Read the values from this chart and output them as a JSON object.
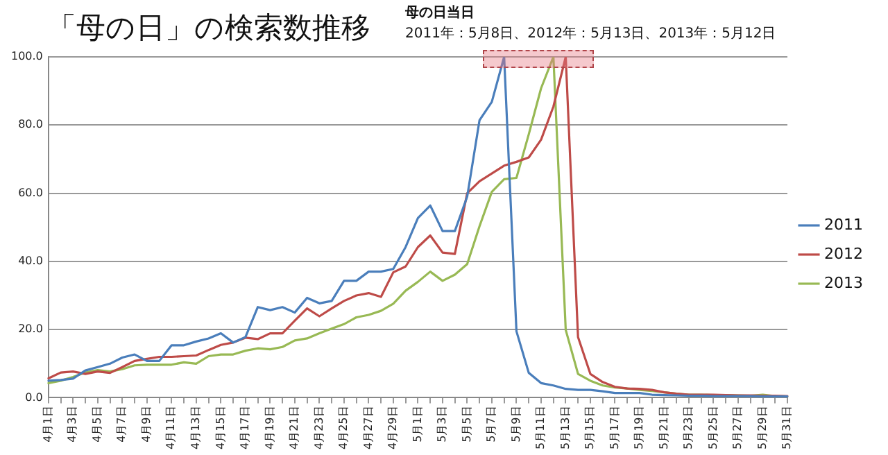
{
  "chart_data": {
    "type": "line",
    "title": "「母の日」の検索数推移",
    "annotations": [
      "母の日当日",
      "2011年：5月8日、2012年：5月13日、2013年：5月12日"
    ],
    "categories": [
      "4月1日",
      null,
      "4月3日",
      null,
      "4月5日",
      null,
      "4月7日",
      null,
      "4月9日",
      null,
      "4月11日",
      null,
      "4月13日",
      null,
      "4月15日",
      null,
      "4月17日",
      null,
      "4月19日",
      null,
      "4月21日",
      null,
      "4月23日",
      null,
      "4月25日",
      null,
      "4月27日",
      null,
      "4月29日",
      null,
      "5月1日",
      null,
      "5月3日",
      null,
      "5月5日",
      null,
      "5月7日",
      null,
      "5月9日",
      null,
      "5月11日",
      null,
      "5月13日",
      null,
      "5月15日",
      null,
      "5月17日",
      null,
      "5月19日",
      null,
      "5月21日",
      null,
      "5月23日",
      null,
      "5月25日",
      null,
      "5月27日",
      null,
      "5月29日",
      null,
      "5月31日"
    ],
    "series": [
      {
        "name": "2011",
        "color": "#4a7ebb",
        "values": [
          5.0,
          5.2,
          5.6,
          8.0,
          9.0,
          10.0,
          11.8,
          12.7,
          10.8,
          10.8,
          15.4,
          15.4,
          16.5,
          17.4,
          18.9,
          16.2,
          17.8,
          26.6,
          25.7,
          26.6,
          25.0,
          29.3,
          27.7,
          28.4,
          34.3,
          34.3,
          37.0,
          37.0,
          37.8,
          44.2,
          52.7,
          56.4,
          48.9,
          48.9,
          59.0,
          81.4,
          86.8,
          100.0,
          19.5,
          7.3,
          4.3,
          3.6,
          2.6,
          2.3,
          2.3,
          1.9,
          1.4,
          1.4,
          1.4,
          0.9,
          0.8,
          0.7,
          0.6,
          0.6,
          0.5,
          0.5,
          0.5,
          0.5,
          0.4,
          0.4,
          0.4
        ]
      },
      {
        "name": "2012",
        "color": "#be4b48",
        "values": [
          5.7,
          7.4,
          7.7,
          7.0,
          7.7,
          7.3,
          9.0,
          10.8,
          11.4,
          12.0,
          12.0,
          12.2,
          12.4,
          14.0,
          15.5,
          16.2,
          17.6,
          17.2,
          18.9,
          18.9,
          22.6,
          26.2,
          23.9,
          26.2,
          28.4,
          30.0,
          30.7,
          29.6,
          36.8,
          38.5,
          44.2,
          47.6,
          42.6,
          42.2,
          60.0,
          63.5,
          65.8,
          68.1,
          69.2,
          70.5,
          75.7,
          85.4,
          100.0,
          17.8,
          7.0,
          4.6,
          3.2,
          2.7,
          2.6,
          2.3,
          1.6,
          1.2,
          0.9,
          0.9,
          0.9,
          0.8,
          0.7,
          0.7,
          0.6,
          0.6,
          0.5
        ]
      },
      {
        "name": "2013",
        "color": "#98b954",
        "values": [
          4.3,
          5.0,
          6.1,
          7.4,
          8.1,
          7.7,
          8.4,
          9.5,
          9.7,
          9.7,
          9.7,
          10.4,
          10.0,
          12.2,
          12.7,
          12.7,
          13.8,
          14.5,
          14.2,
          14.9,
          16.8,
          17.4,
          18.9,
          20.3,
          21.6,
          23.6,
          24.3,
          25.5,
          27.6,
          31.4,
          34.0,
          37.0,
          34.3,
          36.1,
          39.2,
          50.3,
          60.4,
          64.1,
          64.5,
          77.3,
          90.8,
          100.0,
          19.9,
          7.0,
          5.0,
          3.6,
          3.0,
          2.7,
          2.3,
          2.0,
          1.6,
          1.2,
          0.9,
          0.9,
          0.8,
          0.8,
          0.7,
          0.6,
          0.9,
          0.5,
          0.4
        ]
      }
    ],
    "ylim": [
      0,
      100
    ],
    "yticks": [
      {
        "value": 0,
        "label": "0.0"
      },
      {
        "value": 20,
        "label": "20.0"
      },
      {
        "value": 40,
        "label": "40.0"
      },
      {
        "value": 60,
        "label": "60.0"
      },
      {
        "value": 80,
        "label": "80.0"
      },
      {
        "value": 100,
        "label": "100.0"
      }
    ],
    "grid": "y",
    "legend": "right",
    "marker": "none",
    "line_style": "solid"
  }
}
